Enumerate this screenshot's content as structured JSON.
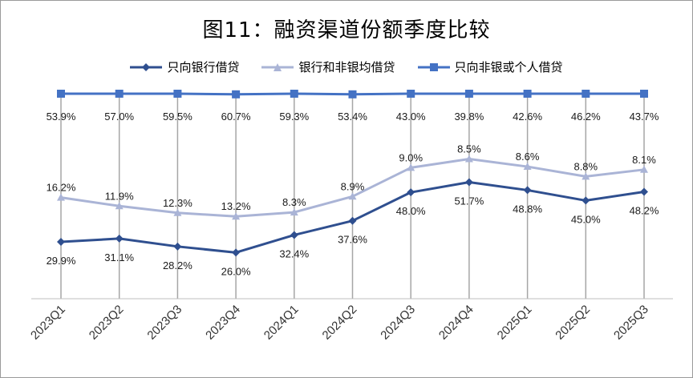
{
  "chart_data": {
    "type": "line",
    "title": "图11：融资渠道份额季度比较",
    "categories": [
      "2023Q1",
      "2023Q2",
      "2023Q3",
      "2023Q4",
      "2024Q1",
      "2024Q2",
      "2024Q3",
      "2024Q4",
      "2025Q1",
      "2025Q2",
      "2025Q3"
    ],
    "series": [
      {
        "name": "只向银行借贷",
        "color": "#2f4f8f",
        "marker": "diamond",
        "values": [
          29.9,
          31.1,
          28.2,
          26.0,
          32.4,
          37.6,
          48.0,
          51.7,
          48.8,
          45.0,
          48.2
        ],
        "labels": [
          "29.9%",
          "31.1%",
          "28.2%",
          "26.0%",
          "32.4%",
          "37.6%",
          "48.0%",
          "51.7%",
          "48.8%",
          "45.0%",
          "48.2%"
        ]
      },
      {
        "name": "银行和非银均借贷",
        "color": "#aab4d6",
        "marker": "triangle",
        "values": [
          16.2,
          11.9,
          12.3,
          13.2,
          8.3,
          8.9,
          9.0,
          8.5,
          8.6,
          8.8,
          8.1
        ],
        "labels": [
          "16.2%",
          "11.9%",
          "12.3%",
          "13.2%",
          "8.3%",
          "8.9%",
          "9.0%",
          "8.5%",
          "8.6%",
          "8.8%",
          "8.1%"
        ]
      },
      {
        "name": "只向非银或个人借贷",
        "color": "#4472c4",
        "marker": "square",
        "values": [
          53.9,
          57.0,
          59.5,
          60.7,
          59.3,
          53.4,
          43.0,
          39.8,
          42.6,
          46.2,
          43.7
        ],
        "labels": [
          "53.9%",
          "57.0%",
          "59.5%",
          "60.7%",
          "59.3%",
          "53.4%",
          "43.0%",
          "39.8%",
          "42.6%",
          "46.2%",
          "43.7%"
        ]
      }
    ],
    "legend_position": "top",
    "grid": "vertical lines only"
  }
}
